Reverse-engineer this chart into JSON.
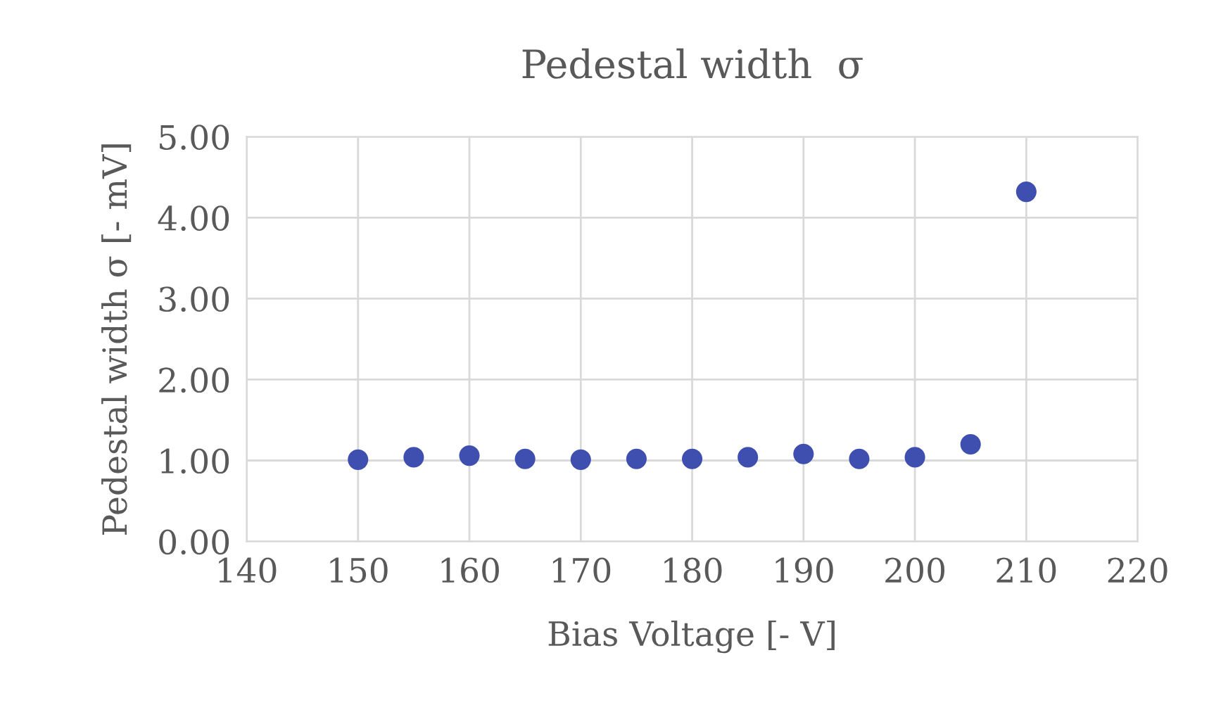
{
  "chart_data": {
    "type": "scatter",
    "title": "Pedestal width  σ",
    "xlabel": "Bias Voltage [- V]",
    "ylabel": "Pedestal width σ [- mV]",
    "x": [
      150,
      155,
      160,
      165,
      170,
      175,
      180,
      185,
      190,
      195,
      200,
      205,
      210
    ],
    "series": [
      {
        "color": "#3f4fb0",
        "values": [
          1.01,
          1.04,
          1.06,
          1.02,
          1.01,
          1.02,
          1.02,
          1.04,
          1.08,
          1.02,
          1.04,
          1.2,
          4.32
        ]
      }
    ],
    "xlim": [
      140,
      220
    ],
    "xticks": [
      140,
      150,
      160,
      170,
      180,
      190,
      200,
      210,
      220
    ],
    "ylim": [
      0,
      5
    ],
    "yticks": [
      {
        "value": 0,
        "label": "0.00"
      },
      {
        "value": 1,
        "label": "1.00"
      },
      {
        "value": 2,
        "label": "2.00"
      },
      {
        "value": 3,
        "label": "3.00"
      },
      {
        "value": 4,
        "label": "4.00"
      },
      {
        "value": 5,
        "label": "5.00"
      }
    ],
    "grid": true,
    "marker": "circle",
    "legend": false
  }
}
